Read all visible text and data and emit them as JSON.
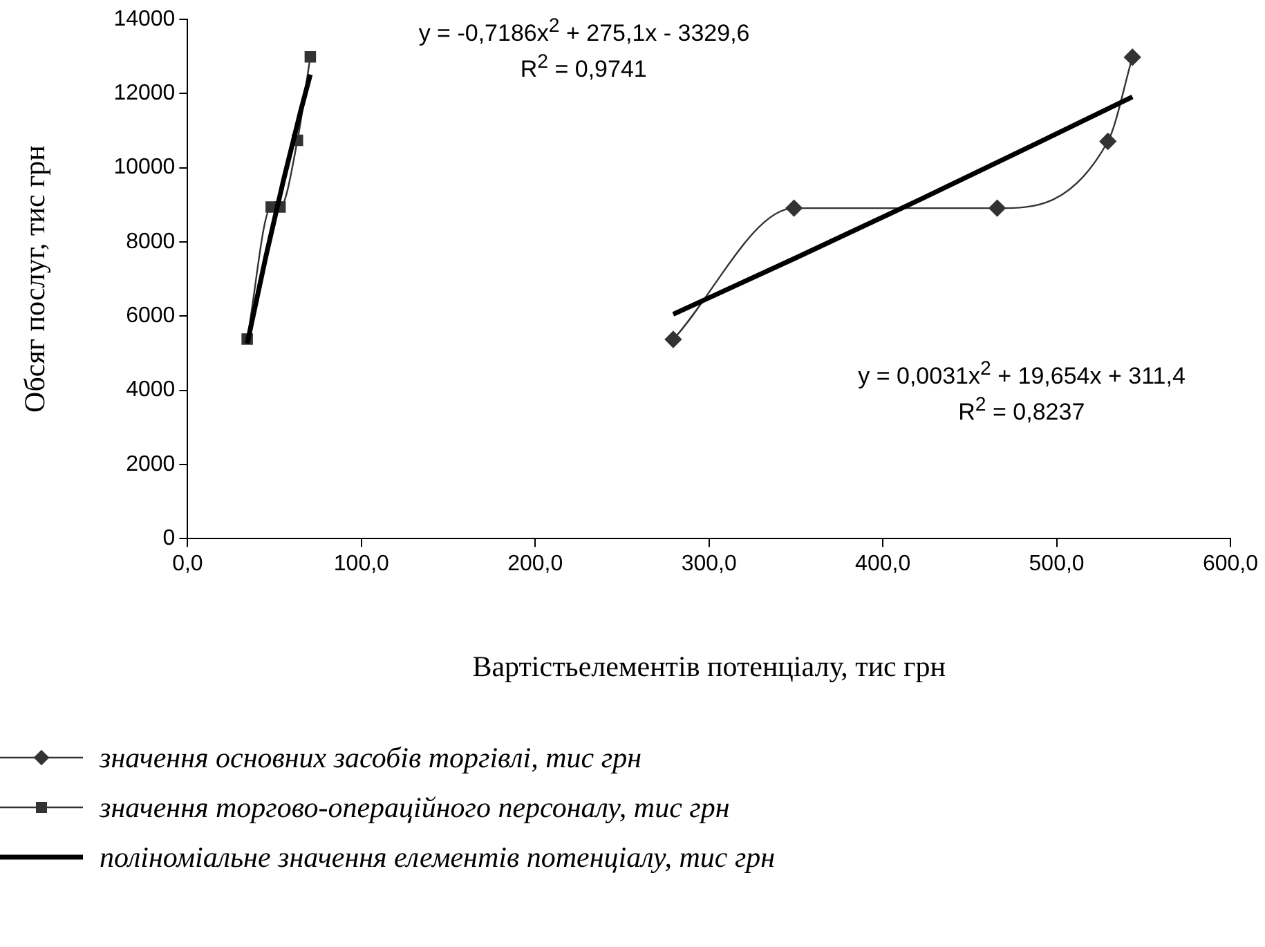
{
  "chart_data": {
    "type": "scatter",
    "xlabel": "Вартістьелементів потенціалу, тис грн",
    "ylabel": "Обсяг послуг, тис грн",
    "xlim": [
      0,
      600
    ],
    "xticks": [
      {
        "value": 0,
        "label": "0,0"
      },
      {
        "value": 100,
        "label": "100,0"
      },
      {
        "value": 200,
        "label": "200,0"
      },
      {
        "value": 300,
        "label": "300,0"
      },
      {
        "value": 400,
        "label": "400,0"
      },
      {
        "value": 500,
        "label": "500,0"
      },
      {
        "value": 600,
        "label": "600,0"
      }
    ],
    "ylim": [
      0,
      14000
    ],
    "yticks": [
      0,
      2000,
      4000,
      6000,
      8000,
      10000,
      12000,
      14000
    ],
    "grid": false,
    "legend": "bottom",
    "series": [
      {
        "name": "значення основних засобів торгівлі, тис грн",
        "type": "line",
        "marker": "diamond",
        "color": "#333333",
        "x": [
          279.4,
          348.9,
          465.8,
          529.5,
          543.6
        ],
        "values": [
          5370,
          8910,
          8910,
          10710,
          12980
        ]
      },
      {
        "name": "значення торгово-операційного персоналу, тис грн",
        "type": "line",
        "marker": "square",
        "color": "#333333",
        "x": [
          34.3,
          48.1,
          53.2,
          63.2,
          70.6
        ],
        "values": [
          5380,
          8940,
          8940,
          10740,
          12990
        ]
      },
      {
        "name": "поліноміальне значення елементів потенціалу, тис грн",
        "type": "line",
        "marker": "none",
        "color": "#000000",
        "x": [
          34.3,
          45,
          55,
          65,
          70.6
        ],
        "values": [
          5260,
          7600,
          9630,
          11520,
          12510
        ]
      },
      {
        "type": "line",
        "marker": "none",
        "color": "#000000",
        "x": [
          279.4,
          350,
          420,
          490,
          543.6
        ],
        "values": [
          6050,
          7570,
          9110,
          10690,
          11910
        ]
      }
    ],
    "annotations": [
      "y = -0,7186x$^{2}$ + 275,1x - 3329,6",
      "R$^{2}$ = 0,9741",
      "y = 0,0031x$^{2}$ + 19,654x + 311,4",
      "R$^{2}$ = 0,8237"
    ]
  }
}
